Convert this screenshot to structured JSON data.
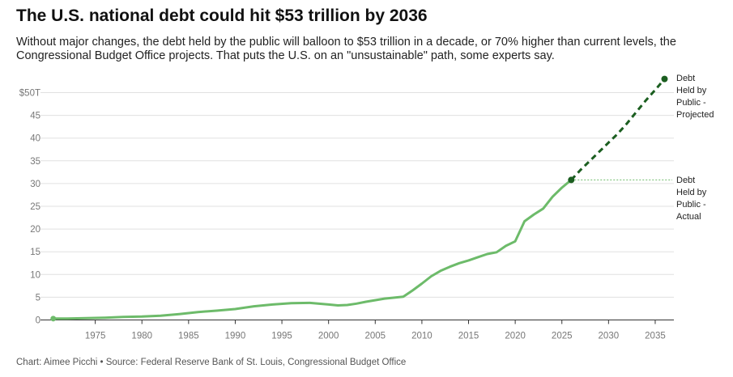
{
  "header": {
    "title": "The U.S. national debt could hit $53 trillion by 2036",
    "subtitle": "Without major changes, the debt held by the public will balloon to $53 trillion in a decade, or 70% higher than current levels, the Congressional Budget Office projects. That puts the U.S. on an \"unsustainable\" path, some experts say."
  },
  "footer": {
    "credit": "Chart: Aimee Picchi • Source: Federal Reserve Bank of St. Louis, Congressional Budget Office"
  },
  "colors": {
    "actual": "#6dbb6a",
    "projected": "#1b5e20",
    "grid": "#e0e0e0",
    "axis": "#333333"
  },
  "chart_data": {
    "type": "line",
    "title": "The U.S. national debt could hit $53 trillion by 2036",
    "xlabel": "",
    "ylabel": "",
    "xlim": [
      1970,
      2037
    ],
    "ylim": [
      0,
      50
    ],
    "grid": true,
    "x_ticks": [
      1975,
      1980,
      1985,
      1990,
      1995,
      2000,
      2005,
      2010,
      2015,
      2020,
      2025,
      2030,
      2035
    ],
    "y_ticks": [
      {
        "value": 0,
        "label": "0"
      },
      {
        "value": 5,
        "label": "5"
      },
      {
        "value": 10,
        "label": "10"
      },
      {
        "value": 15,
        "label": "15"
      },
      {
        "value": 20,
        "label": "20"
      },
      {
        "value": 25,
        "label": "25"
      },
      {
        "value": 30,
        "label": "30"
      },
      {
        "value": 35,
        "label": "35"
      },
      {
        "value": 40,
        "label": "40"
      },
      {
        "value": 45,
        "label": "45"
      },
      {
        "value": 50,
        "label": "$50T"
      }
    ],
    "series": [
      {
        "name": "Debt Held by Public - Actual",
        "label_lines": [
          "Debt",
          "Held by",
          "Public -",
          "Actual"
        ],
        "style": "solid",
        "x": [
          1970.5,
          1972,
          1974,
          1976,
          1978,
          1980,
          1982,
          1984,
          1986,
          1988,
          1990,
          1992,
          1994,
          1996,
          1998,
          2000,
          2001,
          2002,
          2003,
          2004,
          2006,
          2008,
          2009,
          2010,
          2011,
          2012,
          2013,
          2014,
          2015,
          2016,
          2017,
          2018,
          2019,
          2020,
          2021,
          2022,
          2023,
          2024,
          2025,
          2026
        ],
        "y": [
          0.3,
          0.32,
          0.4,
          0.5,
          0.65,
          0.75,
          0.95,
          1.3,
          1.75,
          2.05,
          2.4,
          3.0,
          3.4,
          3.7,
          3.75,
          3.4,
          3.2,
          3.3,
          3.6,
          4.0,
          4.7,
          5.1,
          6.5,
          8.0,
          9.6,
          10.8,
          11.7,
          12.5,
          13.1,
          13.8,
          14.5,
          14.9,
          16.3,
          17.3,
          21.7,
          23.2,
          24.5,
          27.1,
          29.1,
          30.8
        ]
      },
      {
        "name": "Debt Held by Public - Projected",
        "label_lines": [
          "Debt",
          "Held by",
          "Public -",
          "Projected"
        ],
        "style": "dashed",
        "x": [
          2026,
          2027,
          2028,
          2029,
          2030,
          2031,
          2032,
          2033,
          2034,
          2035,
          2036
        ],
        "y": [
          30.8,
          33.0,
          35.0,
          37.0,
          39.0,
          41.0,
          43.3,
          45.8,
          48.3,
          50.6,
          53.0
        ]
      }
    ]
  }
}
